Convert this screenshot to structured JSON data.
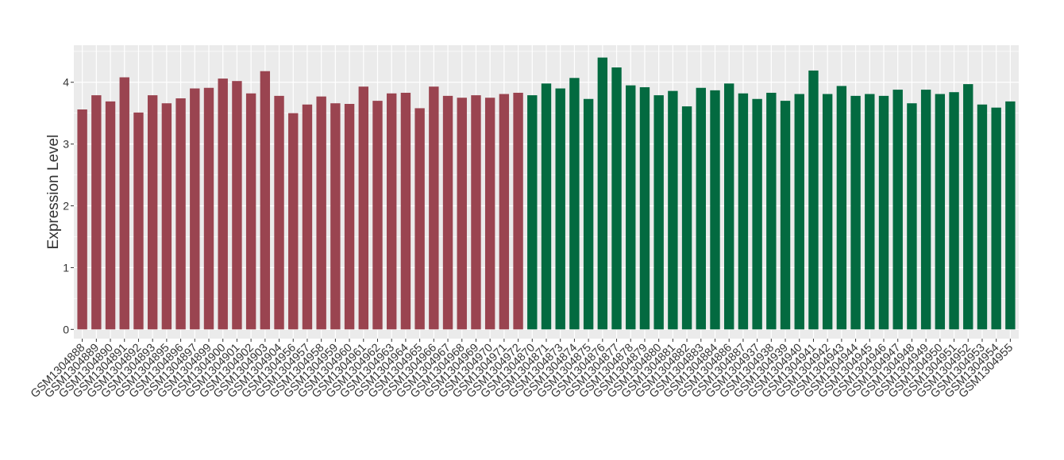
{
  "chart_data": {
    "type": "bar",
    "ylabel": "Expression Level",
    "xlabel": "",
    "ylim": [
      -0.15,
      4.6
    ],
    "yticks": [
      0,
      1,
      2,
      3,
      4
    ],
    "grid": true,
    "legend": "none",
    "colors": {
      "group1": "#9a4450",
      "group2": "#036a40",
      "panel": "#ebebeb",
      "grid": "#ffffff"
    },
    "categories": [
      "GSM1304888",
      "GSM1304889",
      "GSM1304890",
      "GSM1304891",
      "GSM1304892",
      "GSM1304893",
      "GSM1304895",
      "GSM1304896",
      "GSM1304897",
      "GSM1304899",
      "GSM1304900",
      "GSM1304901",
      "GSM1304902",
      "GSM1304903",
      "GSM1304904",
      "GSM1304956",
      "GSM1304957",
      "GSM1304958",
      "GSM1304959",
      "GSM1304960",
      "GSM1304961",
      "GSM1304962",
      "GSM1304963",
      "GSM1304964",
      "GSM1304965",
      "GSM1304966",
      "GSM1304967",
      "GSM1304968",
      "GSM1304969",
      "GSM1304970",
      "GSM1304971",
      "GSM1304972",
      "GSM1304870",
      "GSM1304871",
      "GSM1304873",
      "GSM1304874",
      "GSM1304875",
      "GSM1304876",
      "GSM1304877",
      "GSM1304878",
      "GSM1304879",
      "GSM1304880",
      "GSM1304881",
      "GSM1304882",
      "GSM1304883",
      "GSM1304884",
      "GSM1304886",
      "GSM1304887",
      "GSM1304937",
      "GSM1304938",
      "GSM1304939",
      "GSM1304940",
      "GSM1304941",
      "GSM1304942",
      "GSM1304943",
      "GSM1304944",
      "GSM1304945",
      "GSM1304946",
      "GSM1304947",
      "GSM1304948",
      "GSM1304949",
      "GSM1304950",
      "GSM1304951",
      "GSM1304952",
      "GSM1304953",
      "GSM1304954",
      "GSM1304955"
    ],
    "values": [
      3.56,
      3.79,
      3.69,
      4.08,
      3.51,
      3.79,
      3.66,
      3.74,
      3.9,
      3.91,
      4.06,
      4.02,
      3.82,
      4.18,
      3.78,
      3.5,
      3.64,
      3.77,
      3.66,
      3.65,
      3.93,
      3.7,
      3.82,
      3.83,
      3.58,
      3.93,
      3.78,
      3.75,
      3.79,
      3.75,
      3.81,
      3.83,
      3.79,
      3.98,
      3.9,
      4.07,
      3.73,
      4.4,
      4.24,
      3.95,
      3.92,
      3.79,
      3.86,
      3.61,
      3.91,
      3.87,
      3.98,
      3.82,
      3.73,
      3.83,
      3.7,
      3.81,
      4.19,
      3.81,
      3.94,
      3.78,
      3.81,
      3.78,
      3.88,
      3.66,
      3.88,
      3.81,
      3.84,
      3.97,
      3.64,
      3.59,
      3.69
    ],
    "groups": [
      1,
      1,
      1,
      1,
      1,
      1,
      1,
      1,
      1,
      1,
      1,
      1,
      1,
      1,
      1,
      1,
      1,
      1,
      1,
      1,
      1,
      1,
      1,
      1,
      1,
      1,
      1,
      1,
      1,
      1,
      1,
      1,
      2,
      2,
      2,
      2,
      2,
      2,
      2,
      2,
      2,
      2,
      2,
      2,
      2,
      2,
      2,
      2,
      2,
      2,
      2,
      2,
      2,
      2,
      2,
      2,
      2,
      2,
      2,
      2,
      2,
      2,
      2,
      2,
      2,
      2,
      2
    ]
  }
}
